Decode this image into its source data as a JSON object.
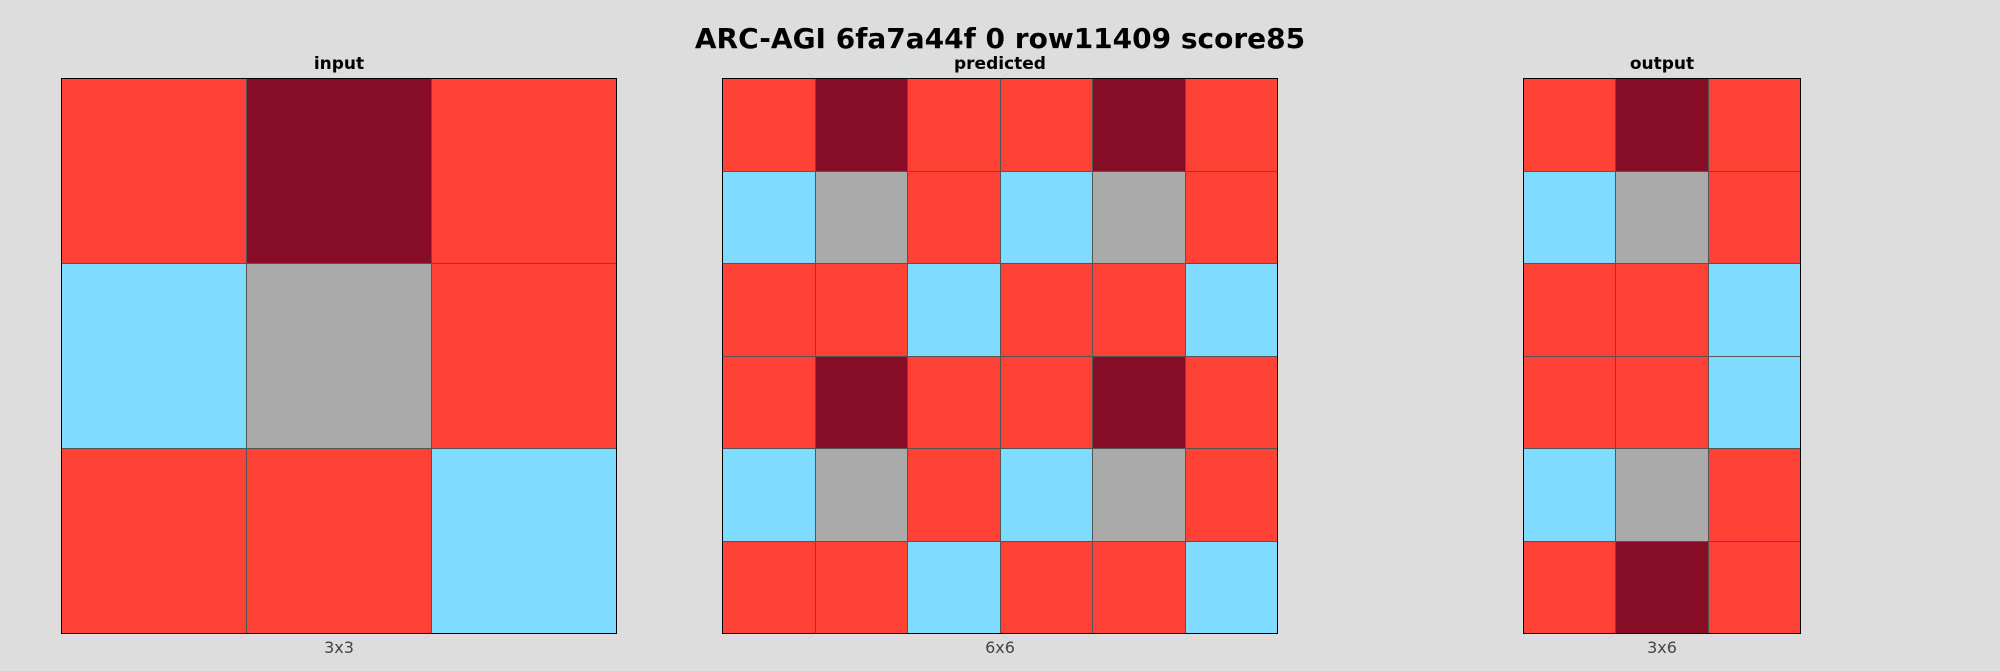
{
  "title": "ARC-AGI 6fa7a44f 0 row11409 score85",
  "palette": {
    "R": "#ff4136",
    "M": "#870c25",
    "B": "#7fdbff",
    "G": "#aaaaaa"
  },
  "panels": {
    "input": {
      "label": "input",
      "dims": "3x3",
      "rows": [
        [
          "R",
          "M",
          "R"
        ],
        [
          "B",
          "G",
          "R"
        ],
        [
          "R",
          "R",
          "B"
        ]
      ]
    },
    "predicted": {
      "label": "predicted",
      "dims": "6x6",
      "rows": [
        [
          "R",
          "M",
          "R",
          "R",
          "M",
          "R"
        ],
        [
          "B",
          "G",
          "R",
          "B",
          "G",
          "R"
        ],
        [
          "R",
          "R",
          "B",
          "R",
          "R",
          "B"
        ],
        [
          "R",
          "M",
          "R",
          "R",
          "M",
          "R"
        ],
        [
          "B",
          "G",
          "R",
          "B",
          "G",
          "R"
        ],
        [
          "R",
          "R",
          "B",
          "R",
          "R",
          "B"
        ]
      ]
    },
    "output": {
      "label": "output",
      "dims": "3x6",
      "rows": [
        [
          "R",
          "M",
          "R"
        ],
        [
          "B",
          "G",
          "R"
        ],
        [
          "R",
          "R",
          "B"
        ],
        [
          "R",
          "R",
          "B"
        ],
        [
          "B",
          "G",
          "R"
        ],
        [
          "R",
          "M",
          "R"
        ]
      ]
    }
  }
}
